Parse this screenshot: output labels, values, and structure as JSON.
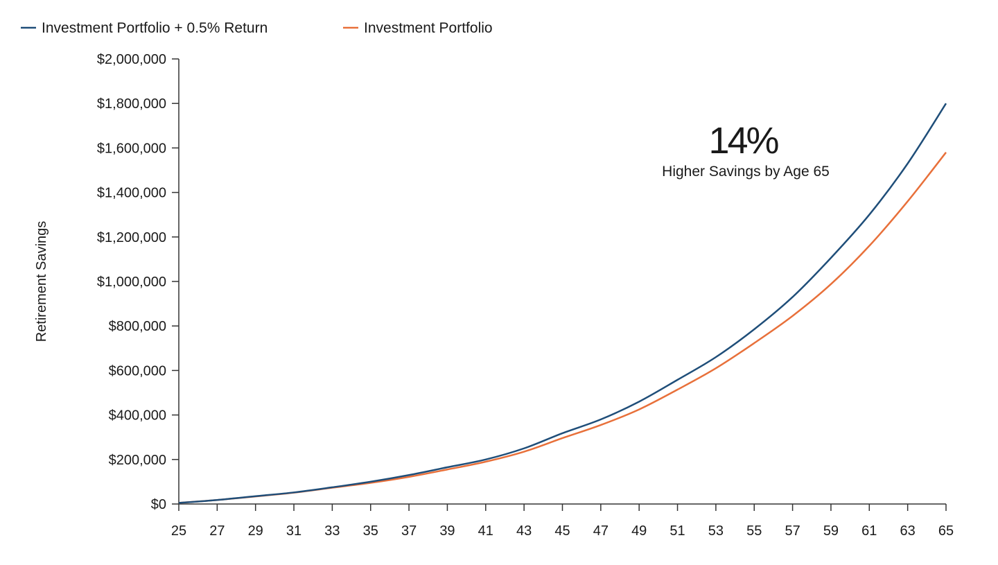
{
  "chart_data": {
    "type": "line",
    "title": "",
    "xlabel": "",
    "ylabel": "Retirement Savings",
    "x": [
      25,
      27,
      29,
      31,
      33,
      35,
      37,
      39,
      41,
      43,
      45,
      47,
      49,
      51,
      53,
      55,
      57,
      59,
      61,
      63,
      65
    ],
    "xlim": [
      25,
      65
    ],
    "ylim": [
      0,
      2000000
    ],
    "y_ticks": [
      0,
      200000,
      400000,
      600000,
      800000,
      1000000,
      1200000,
      1400000,
      1600000,
      1800000,
      2000000
    ],
    "y_tick_labels": [
      "$0",
      "$200,000",
      "$400,000",
      "$600,000",
      "$800,000",
      "$1,000,000",
      "$1,200,000",
      "$1,400,000",
      "$1,600,000",
      "$1,800,000",
      "$2,000,000"
    ],
    "x_tick_labels": [
      "25",
      "27",
      "29",
      "31",
      "33",
      "35",
      "37",
      "39",
      "41",
      "43",
      "45",
      "47",
      "49",
      "51",
      "53",
      "55",
      "57",
      "59",
      "61",
      "63",
      "65"
    ],
    "grid": false,
    "legend_placement": "top-left",
    "series": [
      {
        "name": "Investment Portfolio + 0.5% Return",
        "color": "#1f4e79",
        "values": [
          5000,
          18000,
          35000,
          52000,
          75000,
          100000,
          130000,
          165000,
          200000,
          250000,
          318000,
          380000,
          460000,
          558000,
          660000,
          785000,
          930000,
          1106000,
          1300000,
          1530000,
          1800000
        ]
      },
      {
        "name": "Investment Portfolio",
        "color": "#e8703a",
        "values": [
          5000,
          18000,
          34000,
          51000,
          73000,
          95000,
          122000,
          155000,
          190000,
          235000,
          296000,
          355000,
          425000,
          514000,
          610000,
          723000,
          845000,
          988000,
          1160000,
          1360000,
          1580000
        ]
      }
    ],
    "annotation": {
      "value": "14%",
      "text": "Higher Savings by Age 65"
    }
  }
}
